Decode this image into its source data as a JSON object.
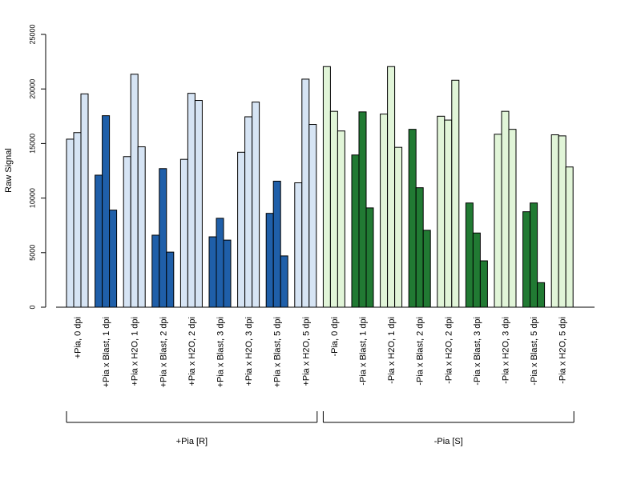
{
  "chart_data": {
    "type": "bar",
    "ylabel": "Raw Signal",
    "ylim": [
      0,
      25000
    ],
    "yticks": [
      0,
      5000,
      10000,
      15000,
      20000,
      25000
    ],
    "grid": false,
    "bar_groups": [
      {
        "label": "+Pia, 0 dpi",
        "values": [
          15400,
          16000,
          19550
        ],
        "color": "#d6e4f4"
      },
      {
        "label": "+Pia x Blast, 1 dpi",
        "values": [
          12100,
          17550,
          8900
        ],
        "color": "#1f5fa9"
      },
      {
        "label": "+Pia x H2O, 1 dpi",
        "values": [
          13800,
          21350,
          14700
        ],
        "color": "#d6e4f4"
      },
      {
        "label": "+Pia x Blast, 2 dpi",
        "values": [
          6600,
          12700,
          5050
        ],
        "color": "#1f5fa9"
      },
      {
        "label": "+Pia x H2O, 2 dpi",
        "values": [
          13550,
          19600,
          18950
        ],
        "color": "#d6e4f4"
      },
      {
        "label": "+Pia x Blast, 3 dpi",
        "values": [
          6450,
          8150,
          6150
        ],
        "color": "#1f5fa9"
      },
      {
        "label": "+Pia x H2O, 3 dpi",
        "values": [
          14200,
          17450,
          18800
        ],
        "color": "#d6e4f4"
      },
      {
        "label": "+Pia x Blast, 5 dpi",
        "values": [
          8600,
          11550,
          4700
        ],
        "color": "#1f5fa9"
      },
      {
        "label": "+Pia x H2O, 5 dpi",
        "values": [
          11400,
          20900,
          16750
        ],
        "color": "#d6e4f4"
      },
      {
        "label": "-Pia, 0 dpi",
        "values": [
          22050,
          17950,
          16150
        ],
        "color": "#e1f5d8"
      },
      {
        "label": "-Pia x Blast, 1 dpi",
        "values": [
          13950,
          17900,
          9100
        ],
        "color": "#217a33"
      },
      {
        "label": "-Pia x H2O, 1 dpi",
        "values": [
          17700,
          22050,
          14650
        ],
        "color": "#e1f5d8"
      },
      {
        "label": "-Pia x Blast, 2 dpi",
        "values": [
          16300,
          10950,
          7050
        ],
        "color": "#217a33"
      },
      {
        "label": "-Pia x H2O, 2 dpi",
        "values": [
          17500,
          17150,
          20800
        ],
        "color": "#e1f5d8"
      },
      {
        "label": "-Pia x Blast, 3 dpi",
        "values": [
          9550,
          6800,
          4250
        ],
        "color": "#217a33"
      },
      {
        "label": "-Pia x H2O, 3 dpi",
        "values": [
          15850,
          17950,
          16300
        ],
        "color": "#e1f5d8"
      },
      {
        "label": "-Pia x Blast, 5 dpi",
        "values": [
          8750,
          9550,
          2250
        ],
        "color": "#217a33"
      },
      {
        "label": "-Pia x H2O, 5 dpi",
        "values": [
          15800,
          15700,
          12850
        ],
        "color": "#e1f5d8"
      }
    ],
    "group_brackets": [
      {
        "label": "+Pia [R]",
        "from_index": 0,
        "to_index": 8
      },
      {
        "label": "-Pia [S]",
        "from_index": 9,
        "to_index": 17
      }
    ]
  }
}
